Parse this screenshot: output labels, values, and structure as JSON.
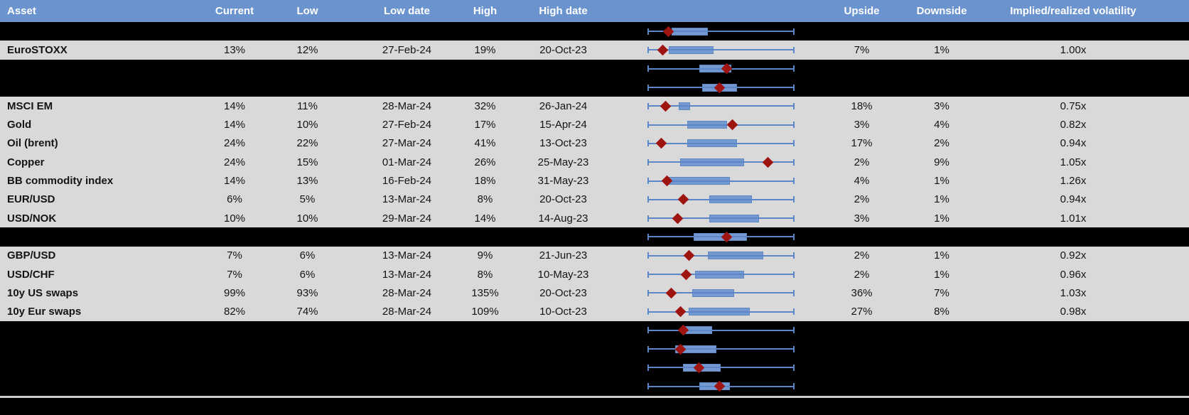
{
  "header": {
    "columns": {
      "asset": "Asset",
      "current": "Current",
      "low": "Low",
      "low_date": "Low date",
      "high": "High",
      "high_date": "High date",
      "plot": "",
      "upside": "Upside",
      "downside": "Downside",
      "implied": "Implied/realized volatility"
    }
  },
  "colors": {
    "header_bg": "#6b93cd",
    "header_text": "#ffffff",
    "row_bg": "#d9d9d9",
    "hidden_row_bg": "#000000",
    "box_fill": "#7499d1",
    "box_border": "#5f88c2",
    "whisker": "#5b87c8",
    "diamond_marker": "#9e1410",
    "separator": "#cdcdcd"
  },
  "chart_data": {
    "type": "table",
    "columns": [
      "Asset",
      "Current",
      "Low",
      "Low date",
      "High",
      "High date",
      "Upside",
      "Downside",
      "Implied/realized volatility"
    ],
    "plot_column": {
      "kind": "horizontal-box-whisker-with-diamond-marker",
      "normalized_range": [
        0,
        1
      ],
      "whisker_span": [
        0,
        1
      ]
    },
    "rows": [
      {
        "kind": "hidden",
        "box": [
          0.16,
          0.41
        ],
        "marker": 0.14
      },
      {
        "kind": "data",
        "asset": "EuroSTOXX",
        "current": "13%",
        "low": "12%",
        "low_date": "27-Feb-24",
        "high": "19%",
        "high_date": "20-Oct-23",
        "upside": "7%",
        "downside": "1%",
        "implied_realized": "1.00x",
        "box": [
          0.14,
          0.45
        ],
        "marker": 0.1
      },
      {
        "kind": "hidden",
        "box": [
          0.35,
          0.57
        ],
        "marker": 0.54
      },
      {
        "kind": "hidden",
        "box": [
          0.37,
          0.61
        ],
        "marker": 0.49
      },
      {
        "kind": "data",
        "asset": "MSCI EM",
        "current": "14%",
        "low": "11%",
        "low_date": "28-Mar-24",
        "high": "32%",
        "high_date": "26-Jan-24",
        "upside": "18%",
        "downside": "3%",
        "implied_realized": "0.75x",
        "box": [
          0.21,
          0.29
        ],
        "marker": 0.12
      },
      {
        "kind": "data",
        "asset": "Gold",
        "current": "14%",
        "low": "10%",
        "low_date": "27-Feb-24",
        "high": "17%",
        "high_date": "15-Apr-24",
        "upside": "3%",
        "downside": "4%",
        "implied_realized": "0.82x",
        "box": [
          0.27,
          0.54
        ],
        "marker": 0.58
      },
      {
        "kind": "data",
        "asset": "Oil (brent)",
        "current": "24%",
        "low": "22%",
        "low_date": "27-Mar-24",
        "high": "41%",
        "high_date": "13-Oct-23",
        "upside": "17%",
        "downside": "2%",
        "implied_realized": "0.94x",
        "box": [
          0.27,
          0.61
        ],
        "marker": 0.09
      },
      {
        "kind": "data",
        "asset": "Copper",
        "current": "24%",
        "low": "15%",
        "low_date": "01-Mar-24",
        "high": "26%",
        "high_date": "25-May-23",
        "upside": "2%",
        "downside": "9%",
        "implied_realized": "1.05x",
        "box": [
          0.22,
          0.66
        ],
        "marker": 0.82
      },
      {
        "kind": "data",
        "asset": "BB commodity index",
        "current": "14%",
        "low": "13%",
        "low_date": "16-Feb-24",
        "high": "18%",
        "high_date": "31-May-23",
        "upside": "4%",
        "downside": "1%",
        "implied_realized": "1.26x",
        "box": [
          0.13,
          0.56
        ],
        "marker": 0.13
      },
      {
        "kind": "data",
        "asset": "EUR/USD",
        "current": "6%",
        "low": "5%",
        "low_date": "13-Mar-24",
        "high": "8%",
        "high_date": "20-Oct-23",
        "upside": "2%",
        "downside": "1%",
        "implied_realized": "0.94x",
        "box": [
          0.42,
          0.71
        ],
        "marker": 0.24
      },
      {
        "kind": "data",
        "asset": "USD/NOK",
        "current": "10%",
        "low": "10%",
        "low_date": "29-Mar-24",
        "high": "14%",
        "high_date": "14-Aug-23",
        "upside": "3%",
        "downside": "1%",
        "implied_realized": "1.01x",
        "box": [
          0.42,
          0.76
        ],
        "marker": 0.2
      },
      {
        "kind": "hidden",
        "box": [
          0.31,
          0.68
        ],
        "marker": 0.54
      },
      {
        "kind": "data",
        "asset": "GBP/USD",
        "current": "7%",
        "low": "6%",
        "low_date": "13-Mar-24",
        "high": "9%",
        "high_date": "21-Jun-23",
        "upside": "2%",
        "downside": "1%",
        "implied_realized": "0.92x",
        "box": [
          0.41,
          0.79
        ],
        "marker": 0.28
      },
      {
        "kind": "data",
        "asset": "USD/CHF",
        "current": "7%",
        "low": "6%",
        "low_date": "13-Mar-24",
        "high": "8%",
        "high_date": "10-May-23",
        "upside": "2%",
        "downside": "1%",
        "implied_realized": "0.96x",
        "box": [
          0.32,
          0.66
        ],
        "marker": 0.26
      },
      {
        "kind": "data",
        "asset": "10y US swaps",
        "current": "99%",
        "low": "93%",
        "low_date": "28-Mar-24",
        "high": "135%",
        "high_date": "20-Oct-23",
        "upside": "36%",
        "downside": "7%",
        "implied_realized": "1.03x",
        "box": [
          0.3,
          0.59
        ],
        "marker": 0.16
      },
      {
        "kind": "data",
        "asset": "10y Eur swaps",
        "current": "82%",
        "low": "74%",
        "low_date": "28-Mar-24",
        "high": "109%",
        "high_date": "10-Oct-23",
        "upside": "27%",
        "downside": "8%",
        "implied_realized": "0.98x",
        "box": [
          0.28,
          0.7
        ],
        "marker": 0.22
      },
      {
        "kind": "hidden",
        "box": [
          0.23,
          0.44
        ],
        "marker": 0.24
      },
      {
        "kind": "hidden",
        "box": [
          0.185,
          0.47
        ],
        "marker": 0.22
      },
      {
        "kind": "hidden",
        "box": [
          0.24,
          0.5
        ],
        "marker": 0.35
      },
      {
        "kind": "hidden",
        "box": [
          0.35,
          0.56
        ],
        "marker": 0.49
      }
    ]
  }
}
